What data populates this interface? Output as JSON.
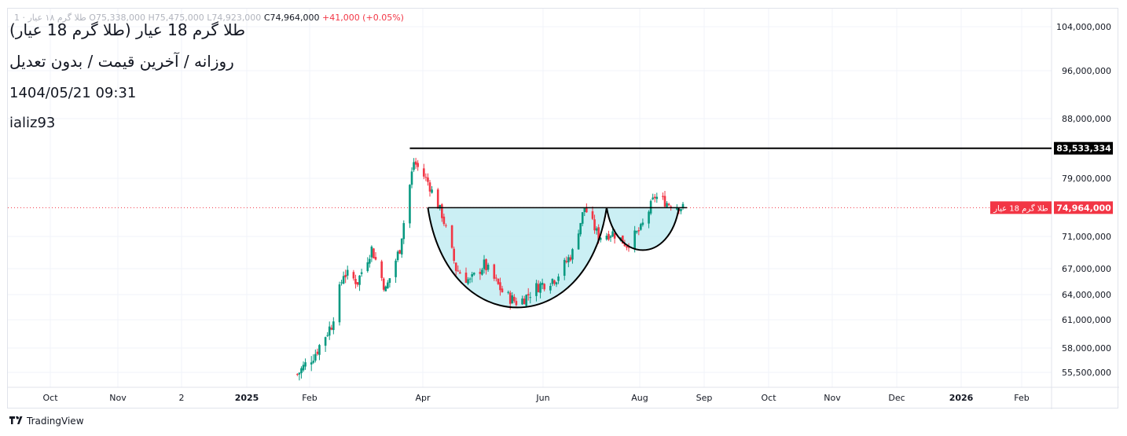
{
  "header": {
    "ohlc_line_faded": "طلا گرم ۱۸ عیار · 1   O75,338,000  H75,475,000  L74,923,000",
    "close_value": "C74,964,000",
    "change": "+41,000 (+0.05%)",
    "title": "طلا گرم 18 عیار (طلا گرم 18 عیار)",
    "subtitle": "روزانه / آخرین قیمت / بدون تعدیل",
    "datetime": "1404/05/21 09:31",
    "author": "ializ93"
  },
  "footer": {
    "brand": "TradingView"
  },
  "colors": {
    "up": "#089981",
    "down": "#f23645",
    "cup_fill": "#b9e9f0",
    "line": "#000000"
  },
  "chart_data": {
    "type": "candlestick",
    "y_ticks": [
      "104,000,000",
      "96,000,000",
      "88,000,000",
      "79,000,000",
      "71,000,000",
      "67,000,000",
      "64,000,000",
      "61,000,000",
      "58,000,000",
      "55,500,000"
    ],
    "x_ticks": [
      {
        "label": "Oct",
        "bold": false
      },
      {
        "label": "Nov",
        "bold": false
      },
      {
        "label": "2",
        "bold": false
      },
      {
        "label": "2025",
        "bold": true
      },
      {
        "label": "Feb",
        "bold": false
      },
      {
        "label": "Apr",
        "bold": false
      },
      {
        "label": "Jun",
        "bold": false
      },
      {
        "label": "Aug",
        "bold": false
      },
      {
        "label": "Sep",
        "bold": false
      },
      {
        "label": "Oct",
        "bold": false
      },
      {
        "label": "Nov",
        "bold": false
      },
      {
        "label": "Dec",
        "bold": false
      },
      {
        "label": "2026",
        "bold": true
      },
      {
        "label": "Feb",
        "bold": false
      }
    ],
    "resistance": {
      "value": 83533334,
      "label": "83,533,334"
    },
    "last_price": {
      "value": 74964000,
      "label": "74,964,000",
      "series_label": "طلا گرم 18 عیار"
    },
    "close_series": [
      {
        "d": "2025-02-01",
        "c": 55300000
      },
      {
        "d": "2025-02-10",
        "c": 57500000
      },
      {
        "d": "2025-02-18",
        "c": 60500000
      },
      {
        "d": "2025-02-24",
        "c": 66500000
      },
      {
        "d": "2025-03-03",
        "c": 65500000
      },
      {
        "d": "2025-03-10",
        "c": 69500000
      },
      {
        "d": "2025-03-17",
        "c": 64500000
      },
      {
        "d": "2025-03-24",
        "c": 69500000
      },
      {
        "d": "2025-03-31",
        "c": 81500000
      },
      {
        "d": "2025-04-07",
        "c": 78500000
      },
      {
        "d": "2025-04-14",
        "c": 74000000
      },
      {
        "d": "2025-04-21",
        "c": 67000000
      },
      {
        "d": "2025-04-28",
        "c": 65500000
      },
      {
        "d": "2025-05-05",
        "c": 67500000
      },
      {
        "d": "2025-05-15",
        "c": 64000000
      },
      {
        "d": "2025-05-22",
        "c": 63000000
      },
      {
        "d": "2025-06-01",
        "c": 65000000
      },
      {
        "d": "2025-06-10",
        "c": 66000000
      },
      {
        "d": "2025-06-18",
        "c": 69000000
      },
      {
        "d": "2025-06-24",
        "c": 75000000
      },
      {
        "d": "2025-07-01",
        "c": 71000000
      },
      {
        "d": "2025-07-08",
        "c": 71500000
      },
      {
        "d": "2025-07-15",
        "c": 70000000
      },
      {
        "d": "2025-07-22",
        "c": 72000000
      },
      {
        "d": "2025-07-29",
        "c": 76500000
      },
      {
        "d": "2025-08-05",
        "c": 75500000
      },
      {
        "d": "2025-08-12",
        "c": 74964000
      }
    ],
    "patterns": [
      "cup and handle"
    ]
  }
}
